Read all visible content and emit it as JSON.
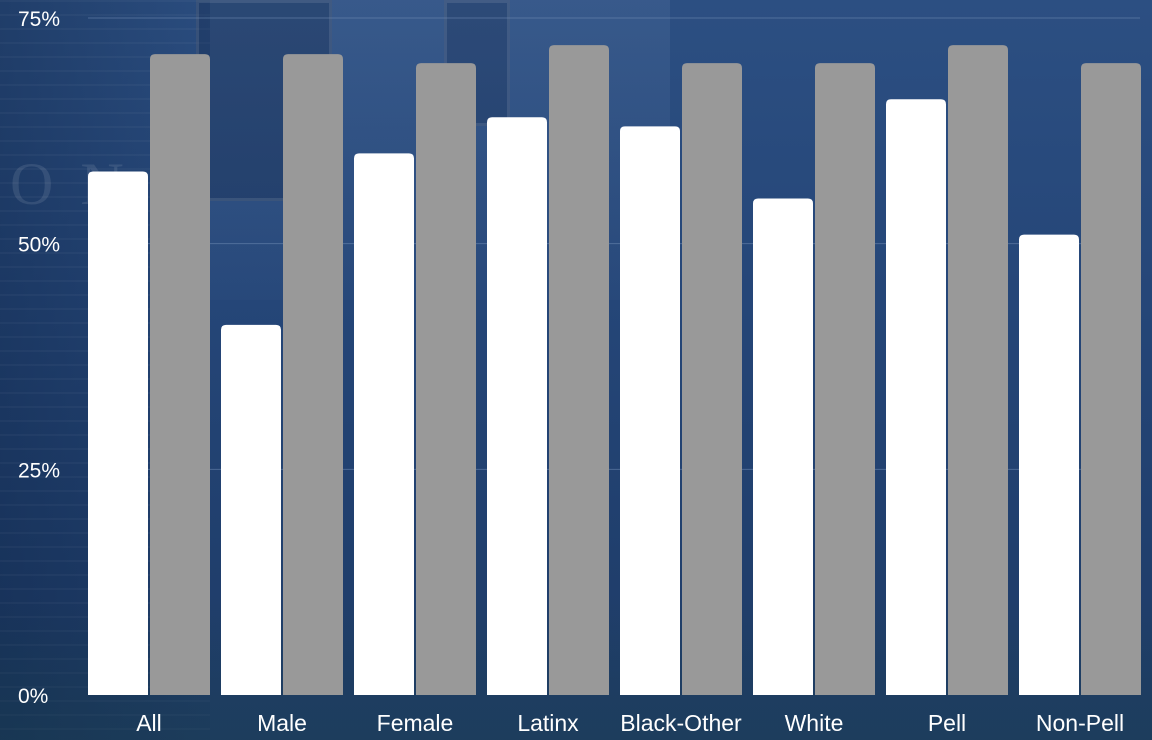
{
  "chart_data": {
    "type": "bar",
    "categories": [
      "All",
      "Male",
      "Female",
      "Latinx",
      "Black-Other",
      "White",
      "Pell",
      "Non-Pell"
    ],
    "series": [
      {
        "values": [
          58,
          41,
          60,
          64,
          63,
          55,
          66,
          51
        ],
        "color": "#ffffff"
      },
      {
        "values": [
          71,
          71,
          70,
          72,
          70,
          70,
          72,
          70
        ],
        "color": "#999999"
      }
    ],
    "y_ticks": [
      {
        "value": 0,
        "label": "0%"
      },
      {
        "value": 25,
        "label": "25%"
      },
      {
        "value": 50,
        "label": "50%"
      },
      {
        "value": 75,
        "label": "75%"
      }
    ],
    "ylim": [
      0,
      75
    ],
    "grid": true,
    "legend": "none",
    "title": "",
    "xlabel": "",
    "ylabel": ""
  },
  "colors": {
    "background": "#254678",
    "grid": "#6f8ab3"
  }
}
